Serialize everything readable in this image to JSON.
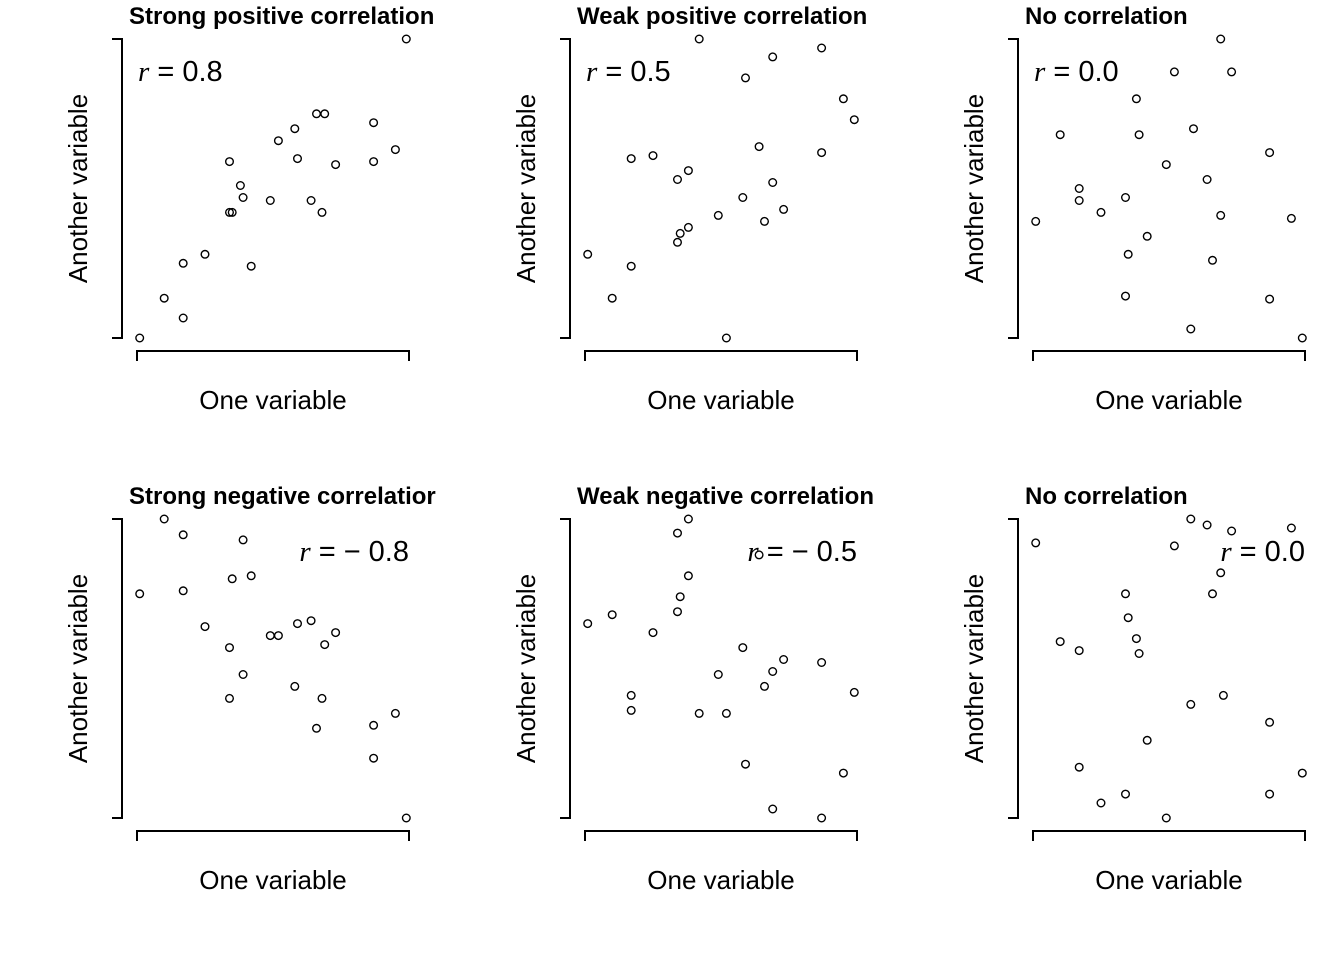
{
  "chart_data": [
    {
      "type": "scatter",
      "title": "Strong positive correlation",
      "xlabel": "One variable",
      "ylabel": "Another variable",
      "annotation": {
        "symbol": "r",
        "text": " = 0.8",
        "placement": "top-left"
      },
      "xlim": [
        0,
        1
      ],
      "ylim": [
        0,
        1
      ],
      "points": [
        {
          "x": 0.01,
          "y": 0.0
        },
        {
          "x": 0.1,
          "y": 0.133
        },
        {
          "x": 0.17,
          "y": 0.067
        },
        {
          "x": 0.17,
          "y": 0.25
        },
        {
          "x": 0.25,
          "y": 0.28
        },
        {
          "x": 0.34,
          "y": 0.42
        },
        {
          "x": 0.35,
          "y": 0.42
        },
        {
          "x": 0.34,
          "y": 0.59
        },
        {
          "x": 0.38,
          "y": 0.51
        },
        {
          "x": 0.39,
          "y": 0.47
        },
        {
          "x": 0.42,
          "y": 0.24
        },
        {
          "x": 0.49,
          "y": 0.46
        },
        {
          "x": 0.52,
          "y": 0.66
        },
        {
          "x": 0.58,
          "y": 0.7
        },
        {
          "x": 0.59,
          "y": 0.6
        },
        {
          "x": 0.64,
          "y": 0.46
        },
        {
          "x": 0.66,
          "y": 0.75
        },
        {
          "x": 0.69,
          "y": 0.75
        },
        {
          "x": 0.68,
          "y": 0.42
        },
        {
          "x": 0.73,
          "y": 0.58
        },
        {
          "x": 0.87,
          "y": 0.72
        },
        {
          "x": 0.87,
          "y": 0.59
        },
        {
          "x": 0.95,
          "y": 0.63
        },
        {
          "x": 0.99,
          "y": 1.0
        }
      ]
    },
    {
      "type": "scatter",
      "title": "Weak positive correlation",
      "xlabel": "One variable",
      "ylabel": "Another variable",
      "annotation": {
        "symbol": "r",
        "text": " = 0.5",
        "placement": "top-left"
      },
      "xlim": [
        0,
        1
      ],
      "ylim": [
        0,
        1
      ],
      "points": [
        {
          "x": 0.01,
          "y": 0.28
        },
        {
          "x": 0.1,
          "y": 0.133
        },
        {
          "x": 0.17,
          "y": 0.24
        },
        {
          "x": 0.17,
          "y": 0.6
        },
        {
          "x": 0.25,
          "y": 0.61
        },
        {
          "x": 0.34,
          "y": 0.32
        },
        {
          "x": 0.35,
          "y": 0.35
        },
        {
          "x": 0.34,
          "y": 0.53
        },
        {
          "x": 0.38,
          "y": 0.37
        },
        {
          "x": 0.38,
          "y": 0.56
        },
        {
          "x": 0.42,
          "y": 1.0
        },
        {
          "x": 0.49,
          "y": 0.41
        },
        {
          "x": 0.52,
          "y": 0.0
        },
        {
          "x": 0.58,
          "y": 0.47
        },
        {
          "x": 0.59,
          "y": 0.87
        },
        {
          "x": 0.64,
          "y": 0.64
        },
        {
          "x": 0.66,
          "y": 0.39
        },
        {
          "x": 0.69,
          "y": 0.94
        },
        {
          "x": 0.69,
          "y": 0.52
        },
        {
          "x": 0.73,
          "y": 0.43
        },
        {
          "x": 0.87,
          "y": 0.97
        },
        {
          "x": 0.87,
          "y": 0.62
        },
        {
          "x": 0.95,
          "y": 0.8
        },
        {
          "x": 0.99,
          "y": 0.73
        }
      ]
    },
    {
      "type": "scatter",
      "title": "No correlation",
      "xlabel": "One variable",
      "ylabel": "Another variable",
      "annotation": {
        "symbol": "r",
        "text": " = 0.0",
        "placement": "top-left"
      },
      "xlim": [
        0,
        1
      ],
      "ylim": [
        0,
        1
      ],
      "points": [
        {
          "x": 0.01,
          "y": 0.39
        },
        {
          "x": 0.1,
          "y": 0.68
        },
        {
          "x": 0.17,
          "y": 0.5
        },
        {
          "x": 0.17,
          "y": 0.46
        },
        {
          "x": 0.25,
          "y": 0.42
        },
        {
          "x": 0.34,
          "y": 0.47
        },
        {
          "x": 0.35,
          "y": 0.28
        },
        {
          "x": 0.34,
          "y": 0.14
        },
        {
          "x": 0.38,
          "y": 0.8
        },
        {
          "x": 0.39,
          "y": 0.68
        },
        {
          "x": 0.42,
          "y": 0.34
        },
        {
          "x": 0.49,
          "y": 0.58
        },
        {
          "x": 0.52,
          "y": 0.89
        },
        {
          "x": 0.58,
          "y": 0.03
        },
        {
          "x": 0.59,
          "y": 0.7
        },
        {
          "x": 0.64,
          "y": 0.53
        },
        {
          "x": 0.66,
          "y": 0.26
        },
        {
          "x": 0.69,
          "y": 0.41
        },
        {
          "x": 0.69,
          "y": 1.0
        },
        {
          "x": 0.73,
          "y": 0.89
        },
        {
          "x": 0.87,
          "y": 0.62
        },
        {
          "x": 0.87,
          "y": 0.13
        },
        {
          "x": 0.95,
          "y": 0.4
        },
        {
          "x": 0.99,
          "y": 0.0
        }
      ]
    },
    {
      "type": "scatter",
      "title": "Strong negative correlatior",
      "xlabel": "One variable",
      "ylabel": "Another variable",
      "annotation": {
        "symbol": "r",
        "text": " = − 0.8",
        "placement": "top-right"
      },
      "xlim": [
        0,
        1
      ],
      "ylim": [
        0,
        1
      ],
      "points": [
        {
          "x": 0.01,
          "y": 0.75
        },
        {
          "x": 0.1,
          "y": 1.0
        },
        {
          "x": 0.17,
          "y": 0.947
        },
        {
          "x": 0.17,
          "y": 0.76
        },
        {
          "x": 0.25,
          "y": 0.64
        },
        {
          "x": 0.34,
          "y": 0.57
        },
        {
          "x": 0.34,
          "y": 0.4
        },
        {
          "x": 0.35,
          "y": 0.8
        },
        {
          "x": 0.39,
          "y": 0.93
        },
        {
          "x": 0.39,
          "y": 0.48
        },
        {
          "x": 0.42,
          "y": 0.81
        },
        {
          "x": 0.49,
          "y": 0.61
        },
        {
          "x": 0.52,
          "y": 0.61
        },
        {
          "x": 0.58,
          "y": 0.44
        },
        {
          "x": 0.59,
          "y": 0.65
        },
        {
          "x": 0.64,
          "y": 0.66
        },
        {
          "x": 0.66,
          "y": 0.3
        },
        {
          "x": 0.68,
          "y": 0.4
        },
        {
          "x": 0.69,
          "y": 0.58
        },
        {
          "x": 0.73,
          "y": 0.62
        },
        {
          "x": 0.87,
          "y": 0.31
        },
        {
          "x": 0.87,
          "y": 0.2
        },
        {
          "x": 0.95,
          "y": 0.35
        },
        {
          "x": 0.99,
          "y": 0.0
        }
      ]
    },
    {
      "type": "scatter",
      "title": "Weak negative correlation",
      "xlabel": "One variable",
      "ylabel": "Another variable",
      "annotation": {
        "symbol": "r",
        "text": " = − 0.5",
        "placement": "top-right"
      },
      "xlim": [
        0,
        1
      ],
      "ylim": [
        0,
        1
      ],
      "points": [
        {
          "x": 0.01,
          "y": 0.65
        },
        {
          "x": 0.1,
          "y": 0.68
        },
        {
          "x": 0.17,
          "y": 0.41
        },
        {
          "x": 0.17,
          "y": 0.36
        },
        {
          "x": 0.25,
          "y": 0.62
        },
        {
          "x": 0.34,
          "y": 0.69
        },
        {
          "x": 0.34,
          "y": 0.953
        },
        {
          "x": 0.35,
          "y": 0.74
        },
        {
          "x": 0.38,
          "y": 0.81
        },
        {
          "x": 0.38,
          "y": 1.0
        },
        {
          "x": 0.42,
          "y": 0.35
        },
        {
          "x": 0.49,
          "y": 0.48
        },
        {
          "x": 0.52,
          "y": 0.35
        },
        {
          "x": 0.58,
          "y": 0.57
        },
        {
          "x": 0.59,
          "y": 0.18
        },
        {
          "x": 0.64,
          "y": 0.88
        },
        {
          "x": 0.66,
          "y": 0.44
        },
        {
          "x": 0.69,
          "y": 0.49
        },
        {
          "x": 0.69,
          "y": 0.03
        },
        {
          "x": 0.73,
          "y": 0.53
        },
        {
          "x": 0.87,
          "y": 0.52
        },
        {
          "x": 0.87,
          "y": 0.0
        },
        {
          "x": 0.95,
          "y": 0.15
        },
        {
          "x": 0.99,
          "y": 0.42
        }
      ]
    },
    {
      "type": "scatter",
      "title": "No correlation",
      "xlabel": "One variable",
      "ylabel": "Another variable",
      "annotation": {
        "symbol": "r",
        "text": " = 0.0",
        "placement": "top-right"
      },
      "xlim": [
        0,
        1
      ],
      "ylim": [
        0,
        1
      ],
      "points": [
        {
          "x": 0.01,
          "y": 0.92
        },
        {
          "x": 0.1,
          "y": 0.59
        },
        {
          "x": 0.17,
          "y": 0.56
        },
        {
          "x": 0.17,
          "y": 0.17
        },
        {
          "x": 0.25,
          "y": 0.05
        },
        {
          "x": 0.34,
          "y": 0.75
        },
        {
          "x": 0.35,
          "y": 0.67
        },
        {
          "x": 0.34,
          "y": 0.08
        },
        {
          "x": 0.38,
          "y": 0.6
        },
        {
          "x": 0.39,
          "y": 0.55
        },
        {
          "x": 0.42,
          "y": 0.26
        },
        {
          "x": 0.49,
          "y": 0.0
        },
        {
          "x": 0.52,
          "y": 0.91
        },
        {
          "x": 0.58,
          "y": 0.38
        },
        {
          "x": 0.58,
          "y": 1.0
        },
        {
          "x": 0.64,
          "y": 0.98
        },
        {
          "x": 0.66,
          "y": 0.75
        },
        {
          "x": 0.69,
          "y": 0.82
        },
        {
          "x": 0.7,
          "y": 0.41
        },
        {
          "x": 0.73,
          "y": 0.96
        },
        {
          "x": 0.87,
          "y": 0.32
        },
        {
          "x": 0.87,
          "y": 0.08
        },
        {
          "x": 0.95,
          "y": 0.97
        },
        {
          "x": 0.99,
          "y": 0.15
        }
      ]
    }
  ]
}
